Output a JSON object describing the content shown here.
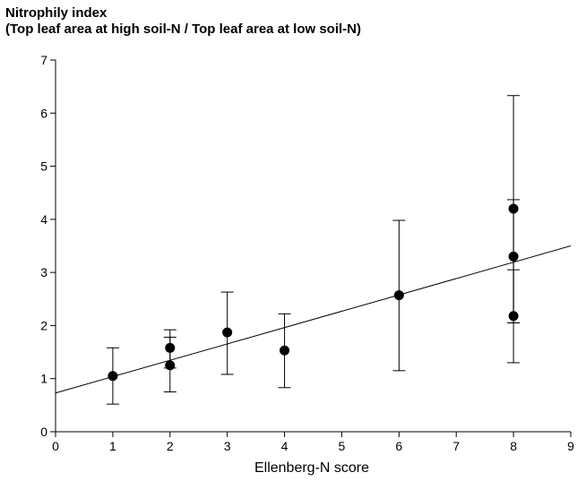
{
  "chart_data": {
    "type": "scatter",
    "ylabel_line1": "Nitrophily index",
    "ylabel_line2": "(Top leaf area at high soil-N / Top leaf area at low soil-N)",
    "xlabel": "Ellenberg-N score",
    "xlim": [
      0,
      9
    ],
    "ylim": [
      0,
      7
    ],
    "xticks": [
      "0",
      "1",
      "2",
      "3",
      "4",
      "5",
      "6",
      "7",
      "8",
      "9"
    ],
    "yticks": [
      "0",
      "1",
      "2",
      "3",
      "4",
      "5",
      "6",
      "7"
    ],
    "points": [
      {
        "x": 1,
        "y": 1.05,
        "err_low": 0.52,
        "err_high": 1.58
      },
      {
        "x": 2,
        "y": 1.58,
        "err_low": 1.2,
        "err_high": 1.92
      },
      {
        "x": 2,
        "y": 1.25,
        "err_low": 0.75,
        "err_high": 1.78
      },
      {
        "x": 3,
        "y": 1.87,
        "err_low": 1.08,
        "err_high": 2.63
      },
      {
        "x": 4,
        "y": 1.53,
        "err_low": 0.83,
        "err_high": 2.22
      },
      {
        "x": 6,
        "y": 2.57,
        "err_low": 1.15,
        "err_high": 3.98
      },
      {
        "x": 8,
        "y": 4.2,
        "err_low": 2.05,
        "err_high": 6.33
      },
      {
        "x": 8,
        "y": 3.3,
        "err_low": 2.05,
        "err_high": 4.37
      },
      {
        "x": 8,
        "y": 2.18,
        "err_low": 1.3,
        "err_high": 3.05
      }
    ],
    "regression": {
      "x": [
        0,
        9
      ],
      "y": [
        0.73,
        3.5
      ]
    },
    "grid": false,
    "legend": "none"
  }
}
